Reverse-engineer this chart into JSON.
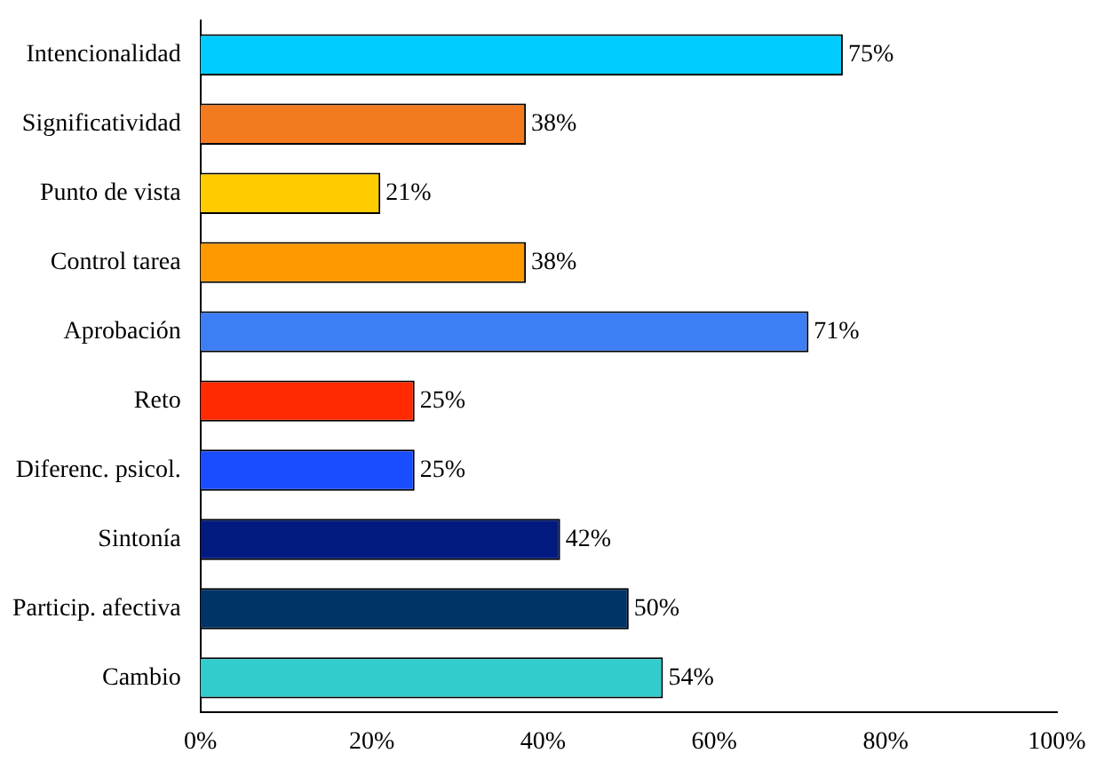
{
  "chart_data": {
    "type": "bar",
    "orientation": "horizontal",
    "categories": [
      "Intencionalidad",
      "Significatividad",
      "Punto de vista",
      "Control tarea",
      "Aprobación",
      "Reto",
      "Diferenc. psicol.",
      "Sintonía",
      "Particip. afectiva",
      "Cambio"
    ],
    "values": [
      75,
      38,
      21,
      38,
      71,
      25,
      25,
      42,
      50,
      54
    ],
    "colors": [
      "#00ccff",
      "#f47a20",
      "#ffcc00",
      "#ff9900",
      "#3d7ef5",
      "#ff2a00",
      "#1a4dff",
      "#001a80",
      "#003366",
      "#33cccc"
    ],
    "value_labels": [
      "75%",
      "38%",
      "21%",
      "38%",
      "71%",
      "25%",
      "25%",
      "42%",
      "50%",
      "54%"
    ],
    "xlim": [
      0,
      100
    ],
    "xticks": [
      {
        "value": 0,
        "label": "0%"
      },
      {
        "value": 20,
        "label": "20%"
      },
      {
        "value": 40,
        "label": "40%"
      },
      {
        "value": 60,
        "label": "60%"
      },
      {
        "value": 80,
        "label": "80%"
      },
      {
        "value": 100,
        "label": "100%"
      }
    ],
    "grid": false,
    "legend": false
  }
}
